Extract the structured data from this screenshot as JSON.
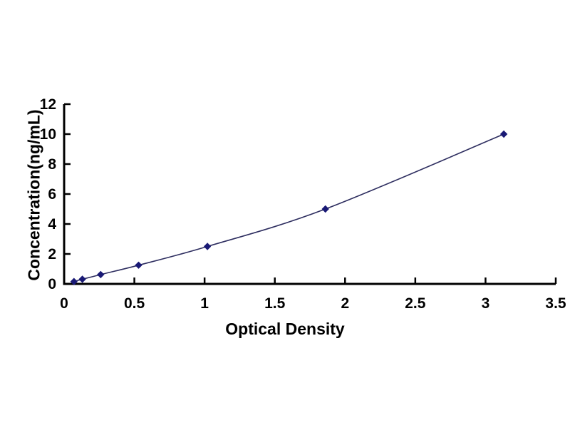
{
  "figure": {
    "background_color": "#ffffff",
    "description": "Standard curve scatter plot"
  },
  "chart_data": {
    "type": "scatter",
    "title": "",
    "xlabel": "Optical Density",
    "ylabel": "Concentration(ng/mL)",
    "x": [
      0.07,
      0.13,
      0.26,
      0.53,
      1.02,
      1.86,
      3.13
    ],
    "y": [
      0.156,
      0.312,
      0.625,
      1.25,
      2.5,
      5,
      10
    ],
    "xlim": [
      0,
      3.5
    ],
    "ylim": [
      0,
      12
    ],
    "xticks": [
      "0",
      "0.5",
      "1",
      "1.5",
      "2",
      "2.5",
      "3",
      "3.5"
    ],
    "yticks": [
      "0",
      "2",
      "4",
      "6",
      "8",
      "10",
      "12"
    ],
    "xtick_values": [
      0,
      0.5,
      1,
      1.5,
      2,
      2.5,
      3,
      3.5
    ],
    "ytick_values": [
      0,
      2,
      4,
      6,
      8,
      10,
      12
    ],
    "grid": false,
    "legend": null,
    "marker_shape": "diamond",
    "marker_color": "#191975",
    "line_color": "#2e2e60",
    "axis_color": "#000000",
    "tick_label_color": "#000000"
  }
}
